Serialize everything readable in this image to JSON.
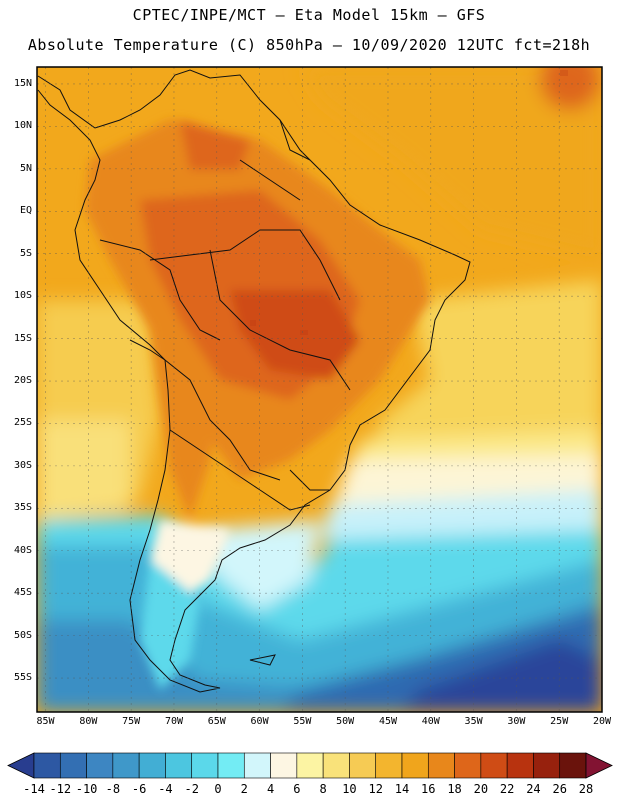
{
  "header": {
    "line1": "CPTEC/INPE/MCT —  Eta Model 15km — GFS",
    "line2": "Absolute Temperature (C) 850hPa — 10/09/2020 12UTC fct=218h"
  },
  "map": {
    "region": "South America",
    "lon_range": [
      -86,
      -20
    ],
    "lat_range": [
      -59,
      17
    ],
    "lat_labels": [
      "15N",
      "10N",
      "5N",
      "EQ",
      "5S",
      "10S",
      "15S",
      "20S",
      "25S",
      "30S",
      "35S",
      "40S",
      "45S",
      "50S",
      "55S"
    ],
    "lon_labels": [
      "85W",
      "80W",
      "75W",
      "70W",
      "65W",
      "60W",
      "55W",
      "50W",
      "45W",
      "40W",
      "35W",
      "30W",
      "25W",
      "20W"
    ]
  },
  "colorbar": {
    "labels": [
      "-14",
      "-12",
      "-10",
      "-8",
      "-6",
      "-4",
      "-2",
      "0",
      "2",
      "4",
      "6",
      "8",
      "10",
      "12",
      "14",
      "16",
      "18",
      "20",
      "22",
      "24",
      "26",
      "28"
    ],
    "colors": [
      "#283d8f",
      "#2d58a3",
      "#336fb3",
      "#3d86c2",
      "#3f98c9",
      "#42aed4",
      "#4cc6e0",
      "#5bd8ea",
      "#73ecf4",
      "#d2f6fb",
      "#fdf6e3",
      "#fcf4a3",
      "#f9e27a",
      "#f6cb54",
      "#f3b52e",
      "#f0a51c",
      "#e8871b",
      "#de661a",
      "#cf4c15",
      "#b8330f",
      "#97210d",
      "#6a130c",
      "#821332"
    ]
  }
}
